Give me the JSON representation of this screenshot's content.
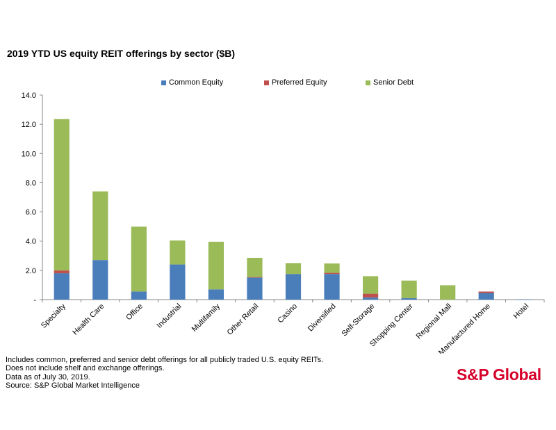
{
  "chart_data": {
    "type": "bar",
    "stacked": true,
    "title": "2019 YTD US equity REIT offerings by sector ($B)",
    "xlabel": "",
    "ylabel": "",
    "ylim": [
      0,
      14
    ],
    "yticks": [
      "-",
      "2.0",
      "4.0",
      "6.0",
      "8.0",
      "10.0",
      "12.0",
      "14.0"
    ],
    "grid": false,
    "legend_position": "top",
    "categories": [
      "Specialty",
      "Health Care",
      "Office",
      "Industrial",
      "Multifamily",
      "Other Retail",
      "Casino",
      "Diversified",
      "Self-Storage",
      "Shopping Center",
      "Regional Mall",
      "Manufactured Home",
      "Hotel"
    ],
    "series": [
      {
        "name": "Common Equity",
        "color": "#4a7ebb",
        "values": [
          1.8,
          2.7,
          0.55,
          2.4,
          0.7,
          1.5,
          1.75,
          1.75,
          0.15,
          0.1,
          0.0,
          0.45,
          0.02
        ]
      },
      {
        "name": "Preferred Equity",
        "color": "#c0504d",
        "values": [
          0.2,
          0.0,
          0.0,
          0.0,
          0.0,
          0.05,
          0.0,
          0.08,
          0.25,
          0.0,
          0.0,
          0.1,
          0.0
        ]
      },
      {
        "name": "Senior Debt",
        "color": "#9bbb59",
        "values": [
          10.35,
          4.7,
          4.45,
          1.65,
          3.25,
          1.3,
          0.75,
          0.65,
          1.2,
          1.2,
          0.98,
          0.0,
          0.0
        ]
      }
    ]
  },
  "footnotes": [
    "Includes common, preferred and senior debt offerings for all publicly traded U.S. equity REITs.",
    "Does not include shelf and exchange offerings.",
    "Data as of July 30, 2019.",
    "Source: S&P Global Market Intelligence"
  ],
  "logo": {
    "text": "S&P Global",
    "color": "#d6002a"
  }
}
